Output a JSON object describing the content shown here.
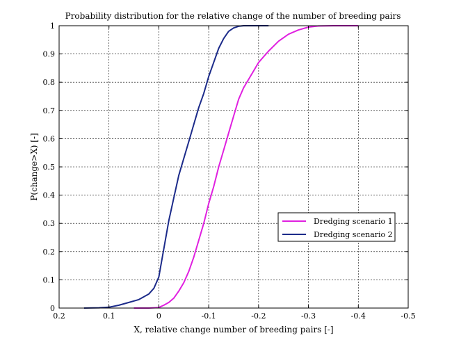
{
  "chart_data": {
    "type": "line",
    "title": "Probability distribution for the relative change of the number of breeding pairs",
    "xlabel": "X, relative change number of breeding pairs [-]",
    "ylabel": "P(change>X) [-]",
    "xlim": [
      0.2,
      -0.5
    ],
    "ylim": [
      0,
      1
    ],
    "x_reversed": true,
    "x_ticks": [
      "0.2",
      "0.1",
      "0",
      "-0.1",
      "-0.2",
      "-0.3",
      "-0.4",
      "-0.5"
    ],
    "x_tick_values": [
      0.2,
      0.1,
      0,
      -0.1,
      -0.2,
      -0.3,
      -0.4,
      -0.5
    ],
    "y_ticks": [
      "0",
      "0.1",
      "0.2",
      "0.3",
      "0.4",
      "0.5",
      "0.6",
      "0.7",
      "0.8",
      "0.9",
      "1"
    ],
    "y_tick_values": [
      0,
      0.1,
      0.2,
      0.3,
      0.4,
      0.5,
      0.6,
      0.7,
      0.8,
      0.9,
      1
    ],
    "grid": true,
    "legend_position": "right",
    "series": [
      {
        "name": "Dredging scenario 1",
        "color": "#e020e0",
        "x": [
          0.05,
          0.02,
          0.0,
          -0.01,
          -0.02,
          -0.03,
          -0.04,
          -0.05,
          -0.06,
          -0.07,
          -0.08,
          -0.09,
          -0.1,
          -0.11,
          -0.12,
          -0.13,
          -0.14,
          -0.15,
          -0.16,
          -0.17,
          -0.18,
          -0.19,
          -0.2,
          -0.22,
          -0.24,
          -0.26,
          -0.28,
          -0.3,
          -0.32,
          -0.35,
          -0.4
        ],
        "y": [
          0.0,
          0.0,
          0.002,
          0.01,
          0.02,
          0.035,
          0.06,
          0.09,
          0.13,
          0.18,
          0.24,
          0.3,
          0.37,
          0.43,
          0.5,
          0.56,
          0.62,
          0.68,
          0.74,
          0.78,
          0.81,
          0.84,
          0.87,
          0.91,
          0.945,
          0.97,
          0.985,
          0.995,
          0.999,
          1.0,
          1.0
        ]
      },
      {
        "name": "Dredging scenario 2",
        "color": "#1c2b8a",
        "x": [
          0.15,
          0.12,
          0.1,
          0.08,
          0.06,
          0.04,
          0.02,
          0.01,
          0.0,
          -0.01,
          -0.02,
          -0.03,
          -0.04,
          -0.05,
          -0.06,
          -0.07,
          -0.08,
          -0.09,
          -0.1,
          -0.11,
          -0.12,
          -0.13,
          -0.14,
          -0.15,
          -0.16,
          -0.17,
          -0.18,
          -0.2,
          -0.22
        ],
        "y": [
          0.0,
          0.001,
          0.003,
          0.01,
          0.02,
          0.03,
          0.05,
          0.07,
          0.11,
          0.21,
          0.31,
          0.39,
          0.47,
          0.53,
          0.59,
          0.65,
          0.71,
          0.76,
          0.82,
          0.87,
          0.92,
          0.955,
          0.98,
          0.992,
          0.998,
          1.0,
          1.0,
          1.0,
          1.0
        ]
      }
    ]
  }
}
